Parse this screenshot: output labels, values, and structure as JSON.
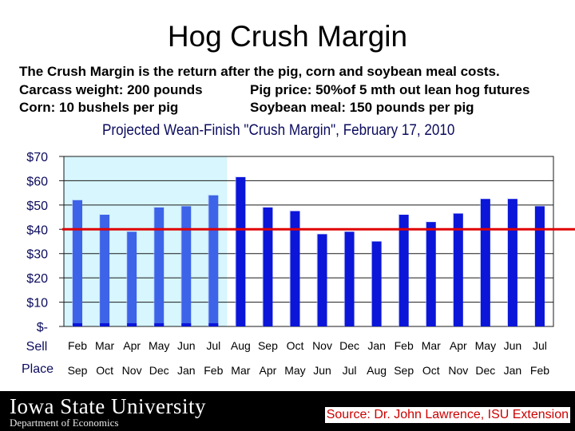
{
  "slide": {
    "title": "Hog Crush Margin",
    "desc_line1": "The Crush Margin is the return after the pig, corn and soybean meal costs.",
    "desc_carcass": "Carcass weight:  200 pounds",
    "desc_pig_price": "Pig price:  50%of 5 mth out lean hog futures",
    "desc_corn": "Corn:  10 bushels per pig",
    "desc_soy": "Soybean meal:  150 pounds per pig"
  },
  "footer": {
    "university": "Iowa State University",
    "department": "Department of Economics",
    "source": "Source: Dr. John Lawrence, ISU Extension"
  },
  "chart_data": {
    "type": "bar",
    "title": "Projected Wean-Finish \"Crush Margin\", February 17, 2010",
    "y_tick_labels": [
      "$-",
      "$10",
      "$20",
      "$30",
      "$40",
      "$50",
      "$60",
      "$70"
    ],
    "ylim": [
      0,
      70
    ],
    "row_labels": [
      "Sell",
      "Place"
    ],
    "sell": [
      "Feb",
      "Mar",
      "Apr",
      "May",
      "Jun",
      "Jul",
      "Aug",
      "Sep",
      "Oct",
      "Nov",
      "Dec",
      "Jan",
      "Feb",
      "Mar",
      "Apr",
      "May",
      "Jun",
      "Jul"
    ],
    "place": [
      "Sep",
      "Oct",
      "Nov",
      "Dec",
      "Jan",
      "Feb",
      "Mar",
      "Apr",
      "May",
      "Jun",
      "Jul",
      "Aug",
      "Sep",
      "Oct",
      "Nov",
      "Dec",
      "Jan",
      "Feb"
    ],
    "values": [
      52,
      46,
      39,
      49,
      49.5,
      54,
      61.5,
      49,
      47.5,
      38,
      39,
      35,
      46,
      43,
      46.5,
      52.5,
      52.5,
      49.5
    ],
    "shaded_count": 6,
    "reference_line": 40,
    "colors": {
      "bar_shaded": "#3d63e8",
      "bar": "#0b16d9",
      "shade_bg": "#d7f6fd",
      "reference": "#e00000",
      "grid": "#1a1a1a",
      "tick_text": "#0b0b5e"
    }
  }
}
